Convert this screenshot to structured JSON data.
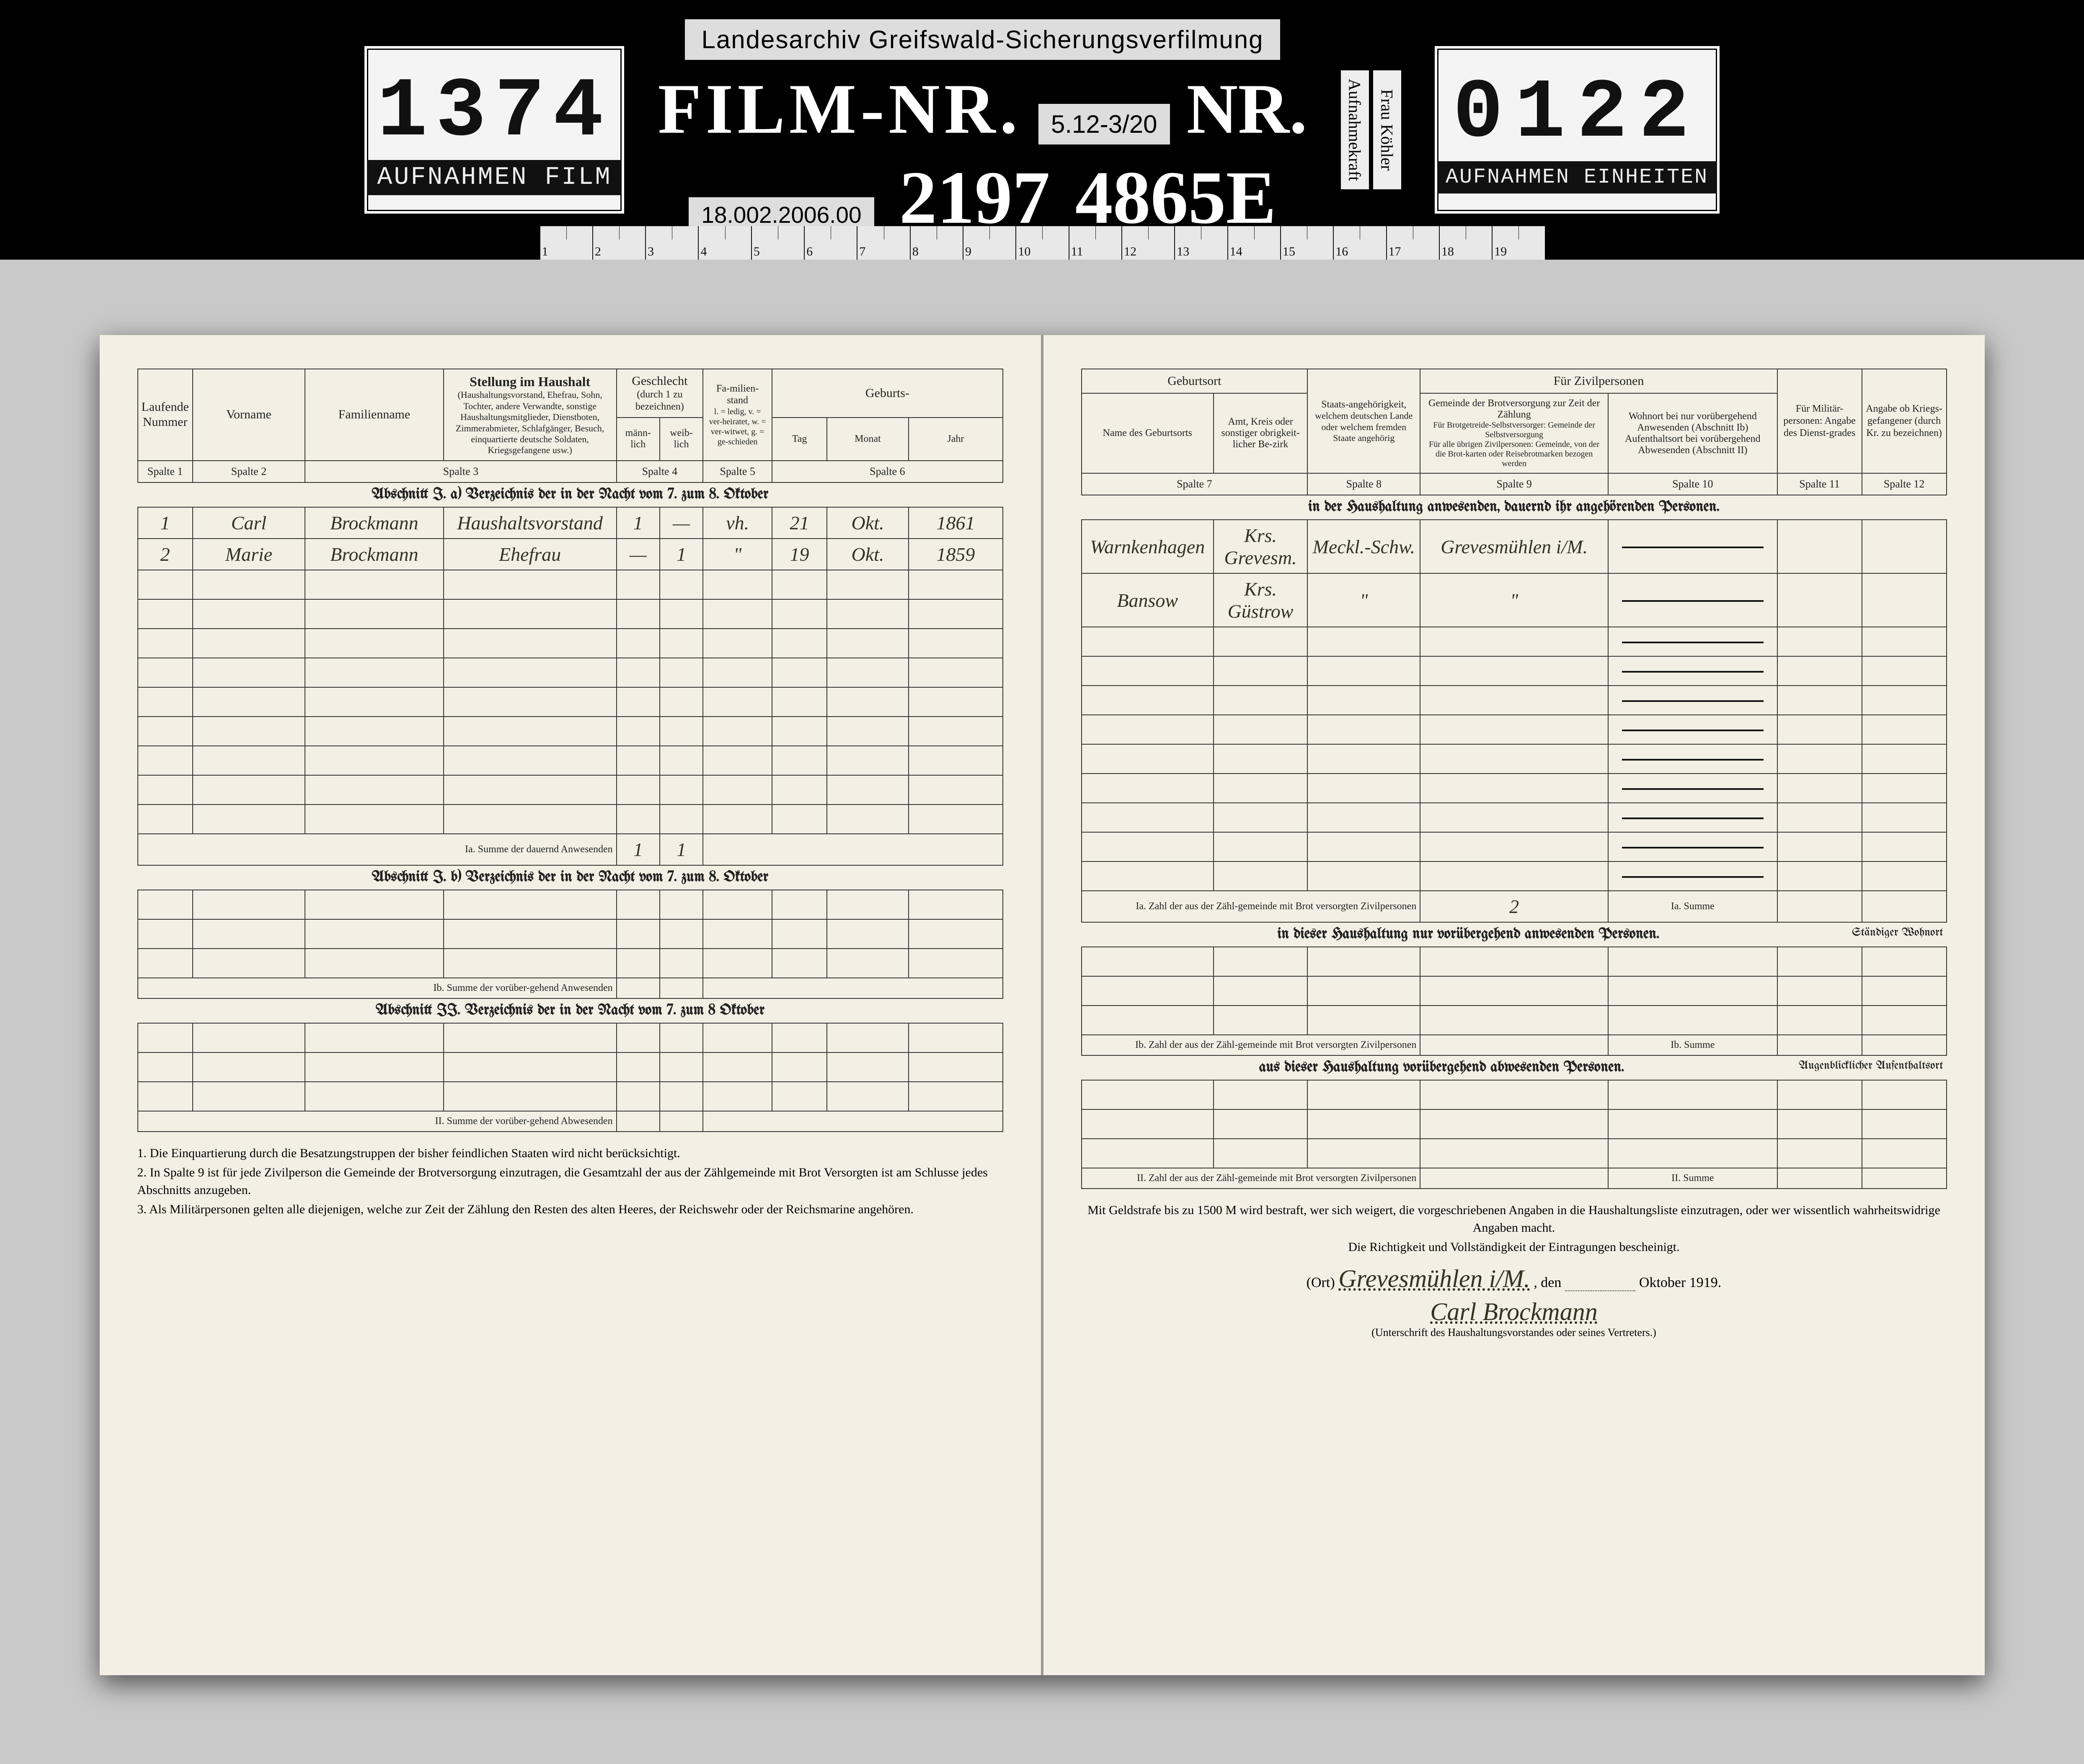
{
  "header": {
    "left_card": {
      "number": "1374",
      "label": "AUFNAHMEN FILM"
    },
    "archive_label": "Landesarchiv Greifswald-Sicherungsverfilmung",
    "film_label": "FILM-NR.",
    "ref_box": "5.12-3/20",
    "nr_label": "NR.",
    "date_box": "18.002.2006.00",
    "film_number": "2197",
    "nr_number": "4865E",
    "vertical1": "Aufnahmekraft",
    "vertical2": "Frau Köhler",
    "right_card": {
      "number": "0122",
      "label": "AUFNAHMEN EINHEITEN"
    },
    "ruler_ticks": [
      "1",
      "2",
      "3",
      "4",
      "5",
      "6",
      "7",
      "8",
      "9",
      "10",
      "11",
      "12",
      "13",
      "14",
      "15",
      "16",
      "17",
      "18",
      "19"
    ]
  },
  "columns_left": {
    "c1": "Laufende Nummer",
    "c2": "Vorname",
    "c3": "Familienname",
    "c4": "Stellung im Haushalt",
    "c4_sub": "(Haushaltungsvorstand, Ehefrau, Sohn, Tochter, andere Verwandte, sonstige Haushaltungsmitglieder, Dienstboten, Zimmerabmieter, Schlafgänger, Besuch, einquartierte deutsche Soldaten, Kriegsgefangene usw.)",
    "c5": "Geschlecht",
    "c5_sub": "(durch 1 zu bezeichnen)",
    "c5a": "männ-lich",
    "c5b": "weib-lich",
    "c6": "Fa-milien-stand",
    "c6_sub": "l. = ledig, v. = ver-heiratet, w. = ver-witwet, g. = ge-schieden",
    "c7": "Geburts-",
    "c7a": "Tag",
    "c7b": "Monat",
    "c7c": "Jahr",
    "sp1": "Spalte 1",
    "sp2": "Spalte 2",
    "sp3": "Spalte 3",
    "sp4": "Spalte 4",
    "sp5": "Spalte 5",
    "sp6": "Spalte 6"
  },
  "columns_right": {
    "g1": "Geburtsort",
    "g1a": "Name des Geburtsorts",
    "g1b": "Amt, Kreis oder sonstiger obrigkeit-licher Be-zirk",
    "g2": "Staats-angehörigkeit,",
    "g2_sub": "welchem deutschen Lande oder welchem fremden Staate angehörig",
    "g3": "Für Zivilpersonen",
    "g3a": "Gemeinde der Brotversorgung zur Zeit der Zählung",
    "g3a1": "Für Brotgetreide-Selbstversorger: Gemeinde der Selbstversorgung",
    "g3a2": "Für alle übrigen Zivilpersonen: Gemeinde, von der die Brot-karten oder Reisebrotmarken bezogen werden",
    "g3b": "Wohnort bei nur vorübergehend Anwesenden (Abschnitt Ib)",
    "g3b2": "Aufenthaltsort bei vorübergehend Abwesenden (Abschnitt II)",
    "g4": "Für Militär-personen: Angabe des Dienst-grades",
    "g5": "Angabe ob Kriegs-gefangener (durch Kr. zu bezeichnen)",
    "sp7": "Spalte 7",
    "sp8": "Spalte 8",
    "sp9": "Spalte 9",
    "sp10": "Spalte 10",
    "sp11": "Spalte 11",
    "sp12": "Spalte 12"
  },
  "section_Ia_left": "Abschnitt I. a) Verzeichnis der in der Nacht vom 7. zum 8. Oktober",
  "section_Ia_right": "in der Haushaltung anwesenden, dauernd ihr angehörenden Personen.",
  "section_Ib_left": "Abschnitt I. b) Verzeichnis der in der Nacht vom 7. zum 8. Oktober",
  "section_Ib_right": "in dieser Haushaltung nur vorübergehend anwesenden Personen.",
  "section_II_left": "Abschnitt II. Verzeichnis der in der Nacht vom 7. zum 8 Oktober",
  "section_II_right": "aus dieser Haushaltung vorübergehend abwesenden Personen.",
  "sum_Ia": "Ia. Summe der dauernd Anwesenden",
  "sum_Ia_r": "Ia. Zahl der aus der Zähl-gemeinde mit Brot versorgten Zivilpersonen",
  "sum_Ia_r2": "Ia. Summe",
  "sum_Ib": "Ib. Summe der vorüber-gehend Anwesenden",
  "sum_Ib_r": "Ib. Zahl der aus der Zähl-gemeinde mit Brot versorgten Zivilpersonen",
  "sum_Ib_r2": "Ib. Summe",
  "sum_II": "II. Summe der vorüber-gehend Abwesenden",
  "sum_II_r": "II. Zahl der aus der Zähl-gemeinde mit Brot versorgten Zivilpersonen",
  "sum_II_r2": "II. Summe",
  "wohnort_hdr": "Ständiger Wohnort",
  "aufenthalt_hdr": "Augenblicklicher Aufenthaltsort",
  "rows": [
    {
      "n": "1",
      "vor": "Carl",
      "fam": "Brockmann",
      "stell": "Haushaltsvorstand",
      "m": "1",
      "w": "—",
      "fs": "vh.",
      "tag": "21",
      "mon": "Okt.",
      "jahr": "1861",
      "ort": "Warnkenhagen",
      "kreis": "Krs. Grevesm.",
      "staat": "Meckl.-Schw.",
      "gem": "Grevesmühlen i/M."
    },
    {
      "n": "2",
      "vor": "Marie",
      "fam": "Brockmann",
      "stell": "Ehefrau",
      "m": "—",
      "w": "1",
      "fs": "\"",
      "tag": "19",
      "mon": "Okt.",
      "jahr": "1859",
      "ort": "Bansow",
      "kreis": "Krs. Güstrow",
      "staat": "\"",
      "gem": "\""
    }
  ],
  "sum_vals": {
    "m": "1",
    "w": "1",
    "zivil": "2"
  },
  "footnotes_left": {
    "f1": "1. Die Einquartierung durch die Besatzungstruppen der bisher feindlichen Staaten wird nicht berücksichtigt.",
    "f2": "2. In Spalte 9 ist für jede Zivilperson die Gemeinde der Brotversorgung einzutragen, die Gesamtzahl der aus der Zählgemeinde mit Brot Versorgten ist am Schlusse jedes Abschnitts anzugeben.",
    "f3": "3. Als Militärpersonen gelten alle diejenigen, welche zur Zeit der Zählung den Resten des alten Heeres, der Reichswehr oder der Reichsmarine angehören."
  },
  "footnotes_right": {
    "f1": "Mit Geldstrafe bis zu 1500 M wird bestraft, wer sich weigert, die vorgeschriebenen Angaben in die Haushaltungsliste einzutragen, oder wer wissentlich wahrheitswidrige Angaben macht.",
    "f2": "Die Richtigkeit und Vollständigkeit der Eintragungen bescheinigt.",
    "ort": "(Ort)",
    "ort_v": "Grevesmühlen i/M.",
    "den": ", den",
    "date_end": "Oktober 1919.",
    "sig": "Carl Brockmann",
    "sig_sub": "(Unterschrift des Haushaltungsvorstandes oder seines Vertreters.)"
  },
  "style": {
    "page_bg": "#f3efe4",
    "ink": "#222222",
    "scan_bg": "#c9c9c9",
    "strip_bg": "#000000",
    "card_bg": "#f4f4f4",
    "ruler_bg": "#e8e8e8"
  }
}
